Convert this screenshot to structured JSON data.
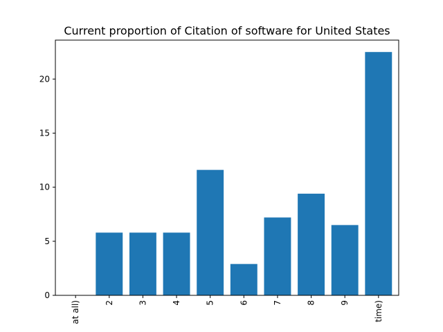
{
  "chart_data": {
    "type": "bar",
    "title": "Current proportion of Citation of software for United States",
    "categories": [
      "at all)",
      "2",
      "3",
      "4",
      "5",
      "6",
      "7",
      "8",
      "9",
      "time)"
    ],
    "values": [
      0,
      5.8,
      5.8,
      5.8,
      11.6,
      2.9,
      7.2,
      9.4,
      6.5,
      22.5
    ],
    "ylim": [
      0,
      23.6
    ],
    "yticks": [
      0,
      5,
      10,
      15,
      20
    ],
    "bar_color": "#1f77b4",
    "grid": false,
    "legend": "none"
  }
}
